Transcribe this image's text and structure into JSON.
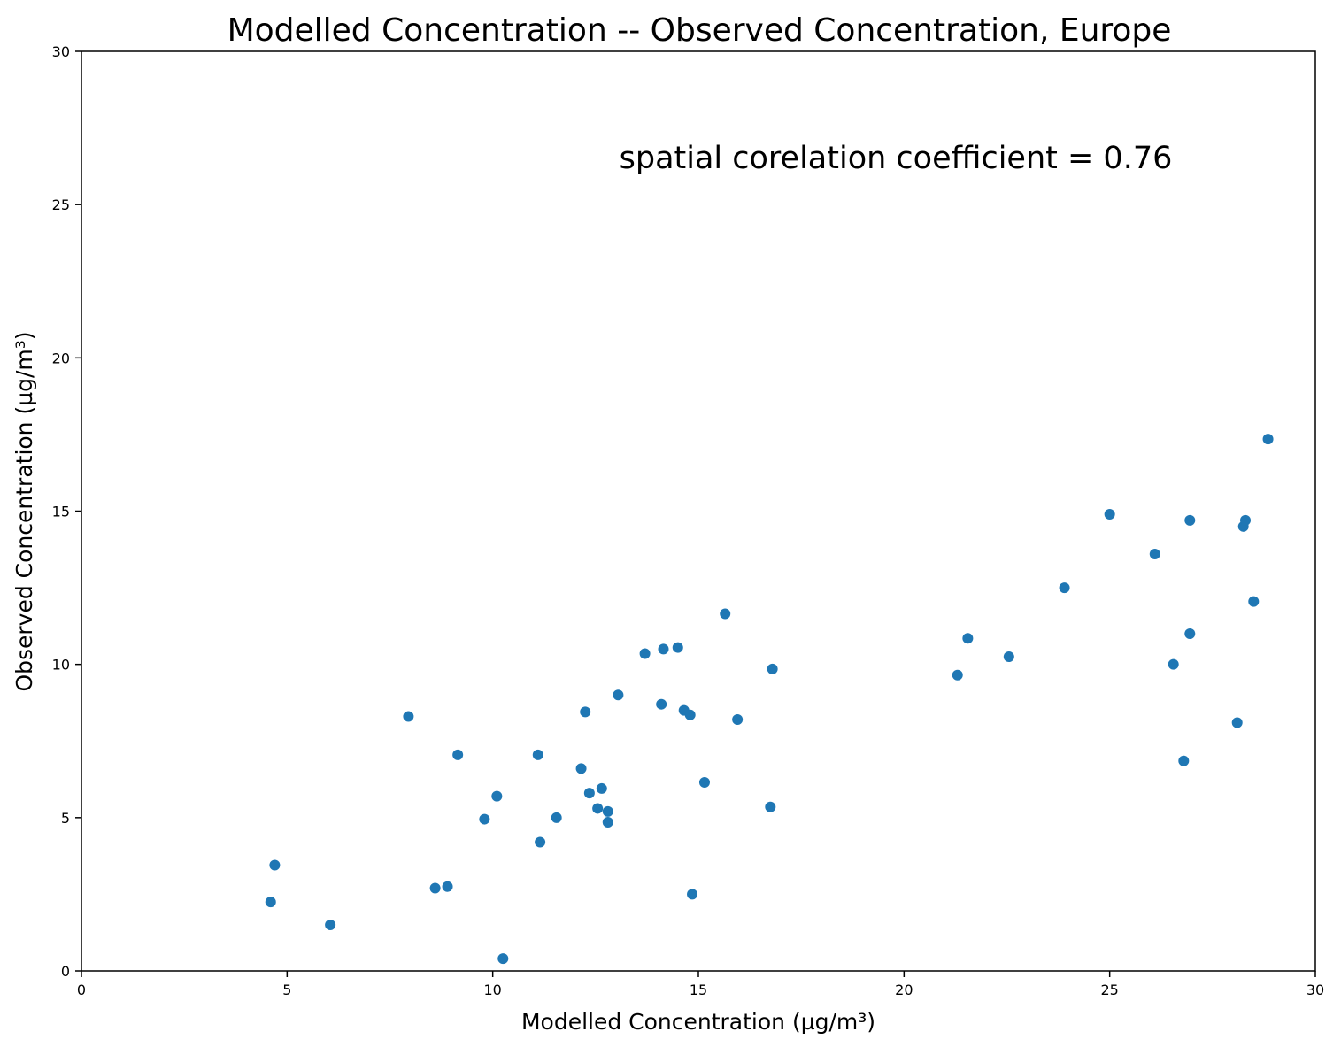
{
  "chart_data": {
    "type": "scatter",
    "title": "Modelled Concentration -- Observed Concentration, Europe",
    "xlabel": "Modelled Concentration (µg/m³)",
    "ylabel": "Observed Concentration (µg/m³)",
    "xlim": [
      0,
      30
    ],
    "ylim": [
      0,
      30
    ],
    "xticks": [
      0,
      5,
      10,
      15,
      20,
      25,
      30
    ],
    "yticks": [
      0,
      5,
      10,
      15,
      20,
      25,
      30
    ],
    "grid": false,
    "annotation": "spatial corelation coefficient = 0.76",
    "marker_color": "#1f77b4",
    "series": [
      {
        "points": [
          [
            4.6,
            2.25
          ],
          [
            4.7,
            3.45
          ],
          [
            6.05,
            1.5
          ],
          [
            7.95,
            8.3
          ],
          [
            8.6,
            2.7
          ],
          [
            8.9,
            2.75
          ],
          [
            9.15,
            7.05
          ],
          [
            9.8,
            4.95
          ],
          [
            10.1,
            5.7
          ],
          [
            10.25,
            0.4
          ],
          [
            11.1,
            7.05
          ],
          [
            11.15,
            4.2
          ],
          [
            11.55,
            5.0
          ],
          [
            12.15,
            6.6
          ],
          [
            12.25,
            8.45
          ],
          [
            12.35,
            5.8
          ],
          [
            12.55,
            5.3
          ],
          [
            12.65,
            5.95
          ],
          [
            12.8,
            4.85
          ],
          [
            12.8,
            5.2
          ],
          [
            13.05,
            9.0
          ],
          [
            13.7,
            10.35
          ],
          [
            14.1,
            8.7
          ],
          [
            14.15,
            10.5
          ],
          [
            14.5,
            10.55
          ],
          [
            14.65,
            8.5
          ],
          [
            14.8,
            8.35
          ],
          [
            14.85,
            2.5
          ],
          [
            15.15,
            6.15
          ],
          [
            15.65,
            11.65
          ],
          [
            15.95,
            8.2
          ],
          [
            16.75,
            5.35
          ],
          [
            16.8,
            9.85
          ],
          [
            21.3,
            9.65
          ],
          [
            21.55,
            10.85
          ],
          [
            22.55,
            10.25
          ],
          [
            23.9,
            12.5
          ],
          [
            25.0,
            14.9
          ],
          [
            26.1,
            13.6
          ],
          [
            26.55,
            10.0
          ],
          [
            26.8,
            6.85
          ],
          [
            26.95,
            14.7
          ],
          [
            26.95,
            11.0
          ],
          [
            28.1,
            8.1
          ],
          [
            28.25,
            14.5
          ],
          [
            28.3,
            14.7
          ],
          [
            28.5,
            12.05
          ],
          [
            28.85,
            17.35
          ]
        ]
      }
    ]
  }
}
